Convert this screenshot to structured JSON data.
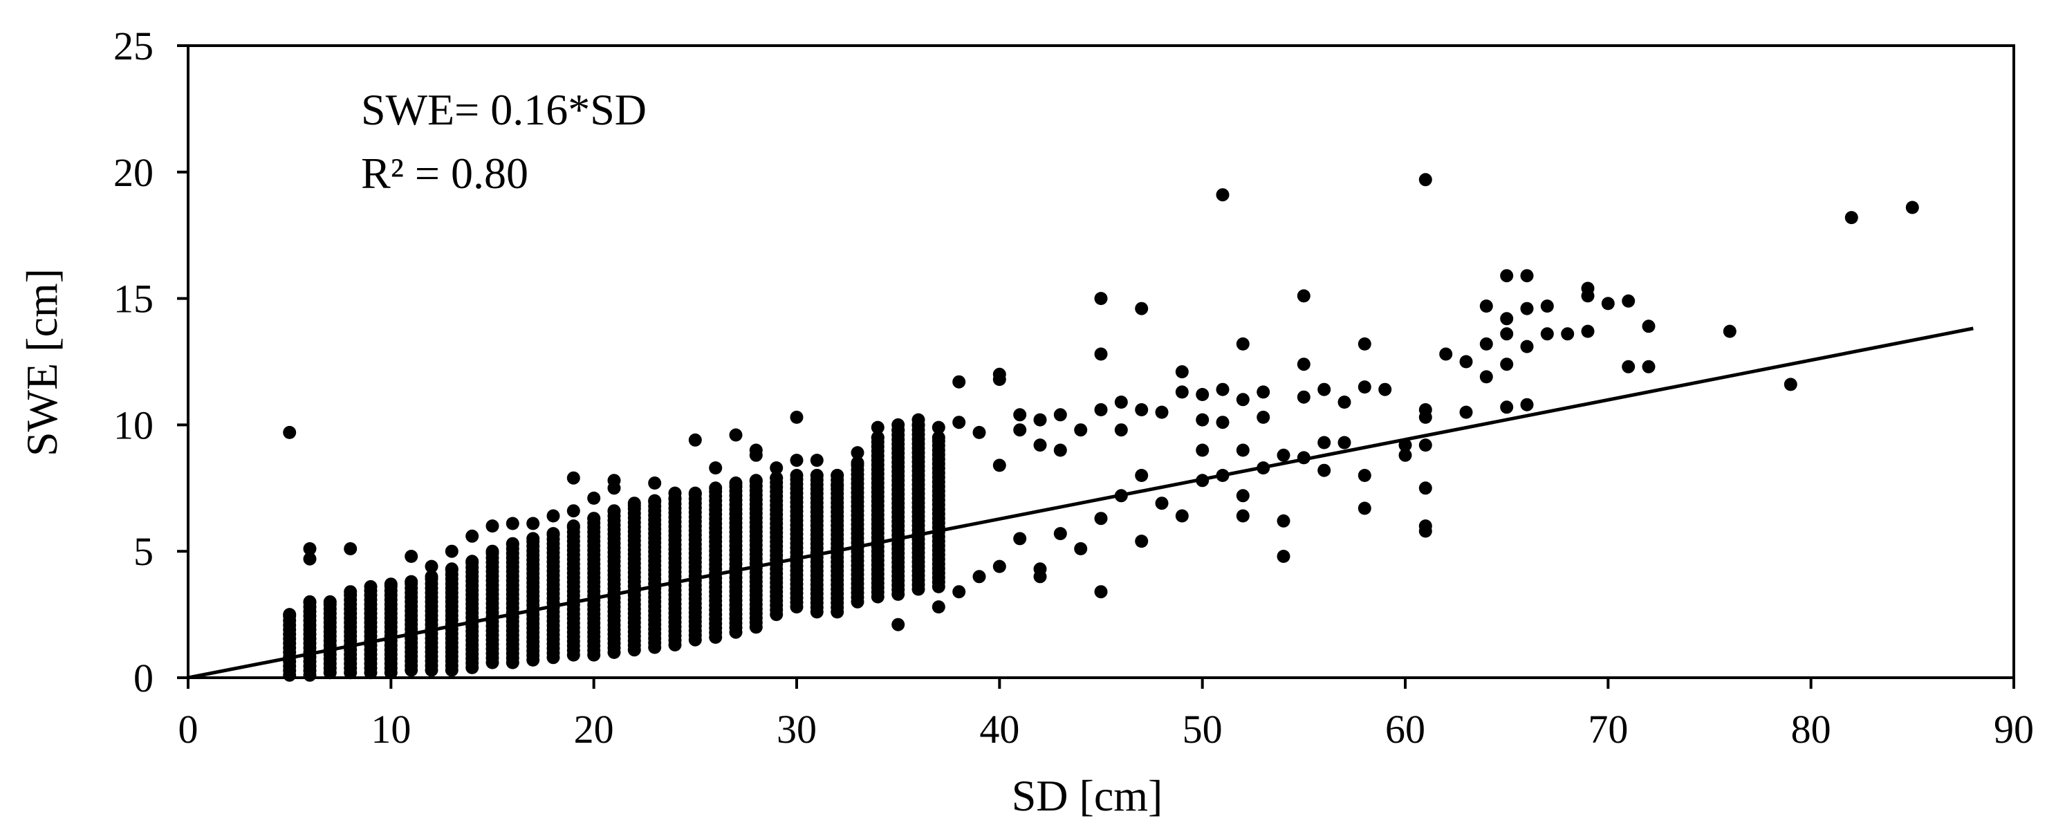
{
  "chart_data": {
    "type": "scatter",
    "title": "",
    "xlabel": "SD [cm]",
    "ylabel": "SWE [cm]",
    "xlim": [
      0,
      90
    ],
    "ylim": [
      0,
      25
    ],
    "xticks": [
      0,
      10,
      20,
      30,
      40,
      50,
      60,
      70,
      80,
      90
    ],
    "yticks": [
      0,
      5,
      10,
      15,
      20,
      25
    ],
    "xtick_labels": [
      "0",
      "10",
      "20",
      "30",
      "40",
      "50",
      "60",
      "70",
      "80",
      "90"
    ],
    "ytick_labels": [
      "0",
      "5",
      "10",
      "15",
      "20",
      "25"
    ],
    "grid": false,
    "colors": {
      "points": "#000000",
      "line": "#000000",
      "axes": "#000000",
      "background": "#ffffff"
    },
    "annotations": {
      "equation": "SWE= 0.16*SD",
      "r_squared": "R² = 0.80"
    },
    "fit_line": {
      "slope": 0.157,
      "intercept": 0,
      "x_range": [
        0,
        88
      ]
    },
    "scatter_columns": [
      {
        "x": 5,
        "min": 0.1,
        "max": 2.5
      },
      {
        "x": 6,
        "min": 0.1,
        "max": 3.0
      },
      {
        "x": 7,
        "min": 0.2,
        "max": 3.0
      },
      {
        "x": 8,
        "min": 0.2,
        "max": 3.4
      },
      {
        "x": 9,
        "min": 0.2,
        "max": 3.6
      },
      {
        "x": 10,
        "min": 0.2,
        "max": 3.7
      },
      {
        "x": 11,
        "min": 0.3,
        "max": 3.8
      },
      {
        "x": 12,
        "min": 0.3,
        "max": 4.0
      },
      {
        "x": 13,
        "min": 0.3,
        "max": 4.3
      },
      {
        "x": 14,
        "min": 0.4,
        "max": 4.6
      },
      {
        "x": 15,
        "min": 0.6,
        "max": 5.0
      },
      {
        "x": 16,
        "min": 0.6,
        "max": 5.3
      },
      {
        "x": 17,
        "min": 0.7,
        "max": 5.5
      },
      {
        "x": 18,
        "min": 0.8,
        "max": 5.7
      },
      {
        "x": 19,
        "min": 0.9,
        "max": 6.0
      },
      {
        "x": 20,
        "min": 0.9,
        "max": 6.3
      },
      {
        "x": 21,
        "min": 1.0,
        "max": 6.6
      },
      {
        "x": 22,
        "min": 1.1,
        "max": 6.8
      },
      {
        "x": 23,
        "min": 1.2,
        "max": 7.0
      },
      {
        "x": 24,
        "min": 1.3,
        "max": 7.1
      },
      {
        "x": 25,
        "min": 1.5,
        "max": 7.3
      },
      {
        "x": 26,
        "min": 1.6,
        "max": 7.5
      },
      {
        "x": 27,
        "min": 1.8,
        "max": 7.7
      },
      {
        "x": 28,
        "min": 2.0,
        "max": 7.8
      },
      {
        "x": 29,
        "min": 2.5,
        "max": 7.9
      },
      {
        "x": 30,
        "min": 2.8,
        "max": 8.0
      },
      {
        "x": 31,
        "min": 2.6,
        "max": 8.0
      },
      {
        "x": 32,
        "min": 2.6,
        "max": 8.0
      },
      {
        "x": 33,
        "min": 3.0,
        "max": 8.5
      },
      {
        "x": 34,
        "min": 3.2,
        "max": 9.5
      },
      {
        "x": 35,
        "min": 3.3,
        "max": 9.8
      },
      {
        "x": 36,
        "min": 3.5,
        "max": 10.0
      },
      {
        "x": 37,
        "min": 3.6,
        "max": 9.5
      }
    ],
    "scatter_points": [
      [
        5,
        9.7
      ],
      [
        6,
        4.7
      ],
      [
        6,
        5.1
      ],
      [
        8,
        5.1
      ],
      [
        11,
        4.8
      ],
      [
        12,
        4.4
      ],
      [
        13,
        5.0
      ],
      [
        14,
        5.6
      ],
      [
        15,
        6.0
      ],
      [
        16,
        6.1
      ],
      [
        17,
        6.1
      ],
      [
        18,
        6.4
      ],
      [
        19,
        7.9
      ],
      [
        19,
        6.6
      ],
      [
        20,
        7.1
      ],
      [
        21,
        7.5
      ],
      [
        21,
        7.8
      ],
      [
        22,
        6.9
      ],
      [
        23,
        7.7
      ],
      [
        24,
        7.3
      ],
      [
        25,
        9.4
      ],
      [
        26,
        8.3
      ],
      [
        27,
        9.6
      ],
      [
        28,
        8.8
      ],
      [
        28,
        9.0
      ],
      [
        29,
        8.3
      ],
      [
        30,
        10.3
      ],
      [
        30,
        8.6
      ],
      [
        31,
        8.6
      ],
      [
        32,
        7.6
      ],
      [
        33,
        8.9
      ],
      [
        34,
        9.9
      ],
      [
        35,
        2.1
      ],
      [
        35,
        10.0
      ],
      [
        36,
        10.2
      ],
      [
        37,
        2.8
      ],
      [
        37,
        9.9
      ],
      [
        38,
        11.7
      ],
      [
        38,
        10.1
      ],
      [
        38,
        3.4
      ],
      [
        39,
        9.7
      ],
      [
        39,
        4.0
      ],
      [
        40,
        12.0
      ],
      [
        40,
        11.8
      ],
      [
        40,
        8.4
      ],
      [
        40,
        4.4
      ],
      [
        41,
        10.4
      ],
      [
        41,
        9.8
      ],
      [
        41,
        5.5
      ],
      [
        42,
        10.2
      ],
      [
        42,
        9.2
      ],
      [
        42,
        4.0
      ],
      [
        42,
        4.3
      ],
      [
        43,
        9.0
      ],
      [
        43,
        10.4
      ],
      [
        43,
        5.7
      ],
      [
        44,
        9.8
      ],
      [
        44,
        5.1
      ],
      [
        45,
        15.0
      ],
      [
        45,
        12.8
      ],
      [
        45,
        10.6
      ],
      [
        45,
        6.3
      ],
      [
        45,
        3.4
      ],
      [
        46,
        10.9
      ],
      [
        46,
        9.8
      ],
      [
        46,
        7.2
      ],
      [
        47,
        14.6
      ],
      [
        47,
        10.6
      ],
      [
        47,
        8.0
      ],
      [
        47,
        5.4
      ],
      [
        48,
        10.5
      ],
      [
        48,
        6.9
      ],
      [
        49,
        12.1
      ],
      [
        49,
        11.3
      ],
      [
        49,
        6.4
      ],
      [
        50,
        11.2
      ],
      [
        50,
        10.2
      ],
      [
        50,
        9.0
      ],
      [
        50,
        7.8
      ],
      [
        51,
        19.1
      ],
      [
        51,
        11.4
      ],
      [
        51,
        10.1
      ],
      [
        51,
        8.0
      ],
      [
        52,
        13.2
      ],
      [
        52,
        11.0
      ],
      [
        52,
        9.0
      ],
      [
        52,
        7.2
      ],
      [
        52,
        6.4
      ],
      [
        53,
        11.3
      ],
      [
        53,
        10.3
      ],
      [
        53,
        8.3
      ],
      [
        54,
        4.8
      ],
      [
        54,
        6.2
      ],
      [
        54,
        8.8
      ],
      [
        55,
        15.1
      ],
      [
        55,
        12.4
      ],
      [
        55,
        11.1
      ],
      [
        55,
        8.7
      ],
      [
        56,
        11.4
      ],
      [
        56,
        9.3
      ],
      [
        56,
        8.2
      ],
      [
        57,
        10.9
      ],
      [
        57,
        9.3
      ],
      [
        58,
        13.2
      ],
      [
        58,
        11.5
      ],
      [
        58,
        8.0
      ],
      [
        58,
        6.7
      ],
      [
        59,
        11.4
      ],
      [
        60,
        9.2
      ],
      [
        60,
        8.8
      ],
      [
        61,
        19.7
      ],
      [
        61,
        10.6
      ],
      [
        61,
        10.3
      ],
      [
        61,
        9.2
      ],
      [
        61,
        7.5
      ],
      [
        61,
        6.0
      ],
      [
        61,
        5.8
      ],
      [
        62,
        12.8
      ],
      [
        63,
        12.5
      ],
      [
        63,
        10.5
      ],
      [
        64,
        14.7
      ],
      [
        64,
        13.2
      ],
      [
        64,
        11.9
      ],
      [
        65,
        15.9
      ],
      [
        65,
        14.2
      ],
      [
        65,
        13.6
      ],
      [
        65,
        12.4
      ],
      [
        65,
        10.7
      ],
      [
        66,
        15.9
      ],
      [
        66,
        14.6
      ],
      [
        66,
        13.1
      ],
      [
        66,
        10.8
      ],
      [
        67,
        14.7
      ],
      [
        67,
        13.6
      ],
      [
        68,
        13.6
      ],
      [
        69,
        15.4
      ],
      [
        69,
        15.1
      ],
      [
        69,
        13.7
      ],
      [
        70,
        14.8
      ],
      [
        71,
        14.9
      ],
      [
        71,
        12.3
      ],
      [
        72,
        13.9
      ],
      [
        72,
        12.3
      ],
      [
        76,
        13.7
      ],
      [
        79,
        11.6
      ],
      [
        82,
        18.2
      ],
      [
        85,
        18.6
      ]
    ]
  }
}
